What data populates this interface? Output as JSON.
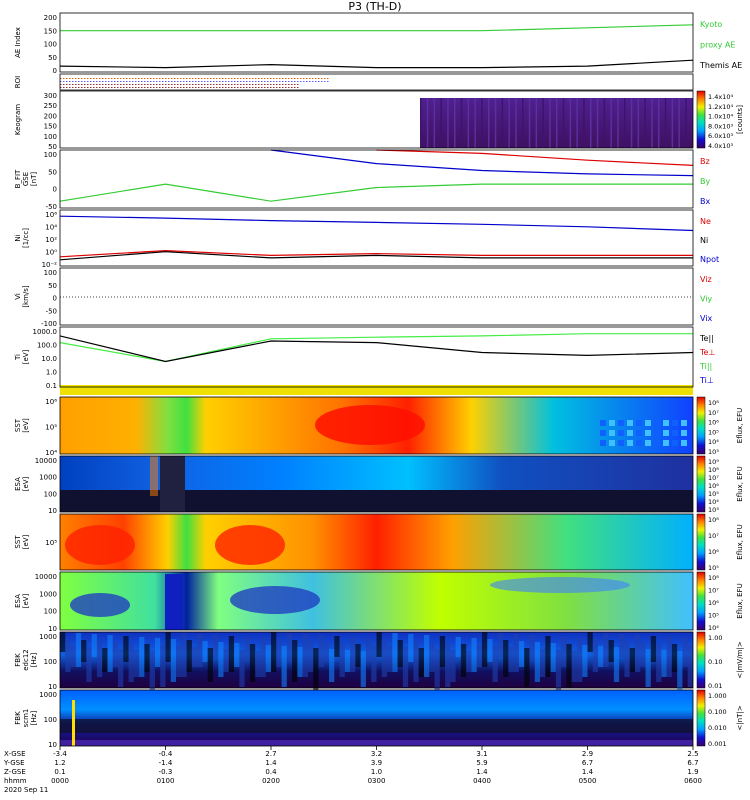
{
  "title": "P3 (TH-D)",
  "colors": {
    "green": "#33cc33",
    "red": "#dd0000",
    "blue": "#0000cc",
    "black": "#000000",
    "lightgreen": "#44ee44"
  },
  "panels": [
    {
      "id": "ae",
      "ylabel": [
        "AE Index"
      ],
      "yticks": [
        "200",
        "150",
        "100",
        "50",
        "0"
      ],
      "legend": [
        {
          "text": "Kyoto",
          "color": "#33cc33"
        },
        {
          "text": "proxy AE",
          "color": "#33cc33"
        },
        {
          "text": "Themis AE",
          "color": "#000000"
        }
      ]
    },
    {
      "id": "roi",
      "ylabel": [
        "ROI"
      ],
      "yticks": [],
      "legend": []
    },
    {
      "id": "keogram",
      "ylabel": [
        "Keogram"
      ],
      "yticks": [
        "300",
        "250",
        "200",
        "150",
        "100",
        "50"
      ],
      "cbar_ticks": [
        "1.4x10⁴",
        "1.2x10⁴",
        "1.0x10⁴",
        "8.0x10³",
        "6.0x10³",
        "4.0x10³"
      ],
      "cbar_label": "[counts]",
      "legend": []
    },
    {
      "id": "bfit",
      "ylabel": [
        "B_FIT",
        "GSE",
        "[nT]"
      ],
      "yticks": [
        "100",
        "50",
        "0",
        "-50"
      ],
      "legend": [
        {
          "text": "Bz",
          "color": "#dd0000"
        },
        {
          "text": "By",
          "color": "#33cc33"
        },
        {
          "text": "Bx",
          "color": "#0000cc"
        }
      ]
    },
    {
      "id": "ni",
      "ylabel": [
        "Ni",
        "[1/cc]"
      ],
      "yticks": [
        "10⁶",
        "10⁴",
        "10²",
        "10⁰",
        "10⁻²"
      ],
      "legend": [
        {
          "text": "Ne",
          "color": "#dd0000"
        },
        {
          "text": "Ni",
          "color": "#000000"
        },
        {
          "text": "Npot",
          "color": "#0000cc"
        }
      ]
    },
    {
      "id": "vi",
      "ylabel": [
        "Vi",
        "[km/s]"
      ],
      "yticks": [
        "100",
        "50",
        "0",
        "-50",
        "-100"
      ],
      "legend": [
        {
          "text": "Viz",
          "color": "#dd0000"
        },
        {
          "text": "Viy",
          "color": "#33cc33"
        },
        {
          "text": "Vix",
          "color": "#0000cc"
        }
      ]
    },
    {
      "id": "te",
      "ylabel": [
        "Ti",
        "[eV]"
      ],
      "yticks": [
        "1000.0",
        "100.0",
        "10.0",
        "1.0",
        "0.1"
      ],
      "legend": [
        {
          "text": "Te||",
          "color": "#000000"
        },
        {
          "text": "Te⊥",
          "color": "#dd0000"
        },
        {
          "text": "Ti||",
          "color": "#33cc33"
        },
        {
          "text": "Ti⊥",
          "color": "#0000cc"
        }
      ]
    },
    {
      "id": "sst_e",
      "ylabel": [
        "SST",
        "[eV]"
      ],
      "yticks": [
        "10⁶",
        "10⁵",
        "10⁴"
      ],
      "cbar_ticks": [
        "10⁸",
        "10⁷",
        "10⁶",
        "10⁵",
        "10⁴",
        "10³"
      ],
      "cbar_label": "Eflux, EFU",
      "legend": []
    },
    {
      "id": "esa_e",
      "ylabel": [
        "ESA",
        "[eV]"
      ],
      "yticks": [
        "10000",
        "1000",
        "100",
        "10"
      ],
      "cbar_ticks": [
        "10⁹",
        "10⁸",
        "10⁷",
        "10⁶",
        "10⁵",
        "10⁴",
        "10³"
      ],
      "cbar_label": "Eflux, EFU",
      "legend": []
    },
    {
      "id": "sst_i",
      "ylabel": [
        "SST",
        "[eV]"
      ],
      "yticks": [
        "10⁵"
      ],
      "cbar_ticks": [
        "10⁸",
        "10⁷",
        "10⁶",
        "10⁵"
      ],
      "cbar_label": "Eflux, EFU",
      "legend": []
    },
    {
      "id": "esa_i",
      "ylabel": [
        "ESA",
        "[eV]"
      ],
      "yticks": [
        "10000",
        "1000",
        "100",
        "10"
      ],
      "cbar_ticks": [
        "10⁸",
        "10⁷",
        "10⁶",
        "10⁵",
        "10⁴"
      ],
      "cbar_label": "Eflux, EFU",
      "legend": []
    },
    {
      "id": "fbk1",
      "ylabel": [
        "FBK",
        "edc12",
        "[Hz]"
      ],
      "yticks": [
        "1000",
        "100",
        "10"
      ],
      "cbar_ticks": [
        "1.00",
        "0.10",
        "0.01"
      ],
      "cbar_label": "<|mV/m|>",
      "legend": []
    },
    {
      "id": "fbk2",
      "ylabel": [
        "FBK",
        "scm1",
        "[Hz]"
      ],
      "yticks": [
        "1000",
        "100",
        "10"
      ],
      "cbar_ticks": [
        "1.000",
        "0.100",
        "0.010",
        "0.001"
      ],
      "cbar_label": "<|nT|>",
      "legend": []
    }
  ],
  "xaxis": {
    "row_labels": [
      "X-GSE",
      "Y-GSE",
      "Z-GSE",
      "hhmm",
      "2020 Sep 11"
    ],
    "columns": [
      [
        "-3.4",
        "1.2",
        "0.1",
        "0000"
      ],
      [
        "-0.4",
        "-1.4",
        "-0.3",
        "0100"
      ],
      [
        "2.7",
        "1.4",
        "0.4",
        "0200"
      ],
      [
        "3.2",
        "3.9",
        "1.0",
        "0300"
      ],
      [
        "3.1",
        "5.9",
        "1.4",
        "0400"
      ],
      [
        "2.9",
        "6.7",
        "1.4",
        "0500"
      ],
      [
        "2.5",
        "6.7",
        "1.9",
        "0600"
      ]
    ]
  },
  "chart_data": {
    "type": "line",
    "title": "P3 (TH-D)",
    "time_range": [
      "2020-09-11 00:00",
      "2020-09-11 06:00"
    ],
    "x": [
      "0000",
      "0100",
      "0200",
      "0300",
      "0400",
      "0500",
      "0600"
    ],
    "series": [
      {
        "name": "Kyoto proxy AE",
        "panel": "ae",
        "values": [
          140,
          140,
          140,
          140,
          140,
          150,
          160
        ]
      },
      {
        "name": "Themis AE",
        "panel": "ae",
        "values": [
          20,
          15,
          25,
          15,
          15,
          20,
          40
        ]
      },
      {
        "name": "Bz",
        "panel": "bfit",
        "values": [
          null,
          null,
          null,
          100,
          90,
          70,
          55
        ]
      },
      {
        "name": "By",
        "panel": "bfit",
        "values": [
          -50,
          0,
          -50,
          -10,
          0,
          0,
          0
        ]
      },
      {
        "name": "Bx",
        "panel": "bfit",
        "values": [
          null,
          null,
          100,
          60,
          40,
          30,
          25
        ]
      },
      {
        "name": "Npot",
        "panel": "ni",
        "values": [
          1000000,
          500000,
          200000,
          100000,
          50000,
          20000,
          5000
        ]
      },
      {
        "name": "Ne",
        "panel": "ni",
        "values": [
          0.3,
          3,
          0.5,
          1,
          0.5,
          0.5,
          0.5
        ]
      },
      {
        "name": "Ni",
        "panel": "ni",
        "values": [
          0.1,
          2,
          0.2,
          0.5,
          0.2,
          0.2,
          0.2
        ]
      },
      {
        "name": "Ti||",
        "panel": "te",
        "values": [
          300,
          10,
          600,
          800,
          1000,
          1500,
          1500
        ]
      },
      {
        "name": "Te||",
        "panel": "te",
        "values": [
          1000,
          10,
          400,
          300,
          50,
          30,
          50
        ]
      }
    ]
  }
}
